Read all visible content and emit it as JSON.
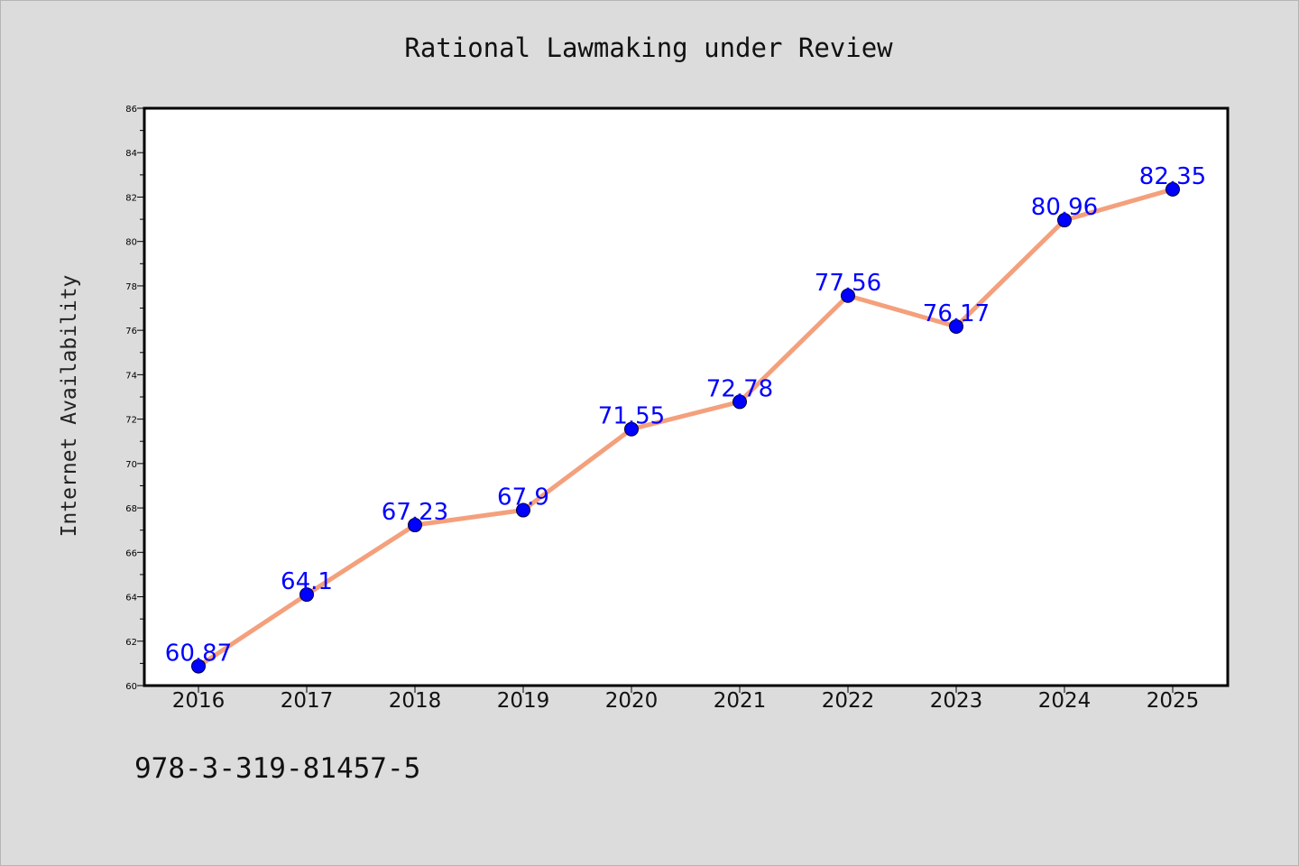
{
  "chart_data": {
    "type": "line",
    "title": "Rational Lawmaking under Review",
    "xlabel": "",
    "ylabel": "Internet Availability",
    "categories": [
      "2016",
      "2017",
      "2018",
      "2019",
      "2020",
      "2021",
      "2022",
      "2023",
      "2024",
      "2025"
    ],
    "series": [
      {
        "values": [
          60.87,
          64.1,
          67.23,
          67.9,
          71.55,
          72.78,
          77.56,
          76.17,
          80.96,
          82.35
        ],
        "labels": [
          "60.87",
          "64.1",
          "67.23",
          "67.9",
          "71.55",
          "72.78",
          "77.56",
          "76.17",
          "80.96",
          "82.35"
        ]
      }
    ],
    "ylim": [
      60,
      86
    ],
    "yticks": [
      "60",
      "62",
      "64",
      "66",
      "68",
      "70",
      "72",
      "74",
      "76",
      "78",
      "80",
      "82",
      "84",
      "86"
    ],
    "grid": false,
    "legend": "none",
    "colors": {
      "line": "#f4a07c",
      "marker": "#0000ff",
      "label": "#0000ff",
      "plot_bg": "#ffffff",
      "page_bg": "#dcdcdc"
    }
  },
  "footer": {
    "isbn": "978-3-319-81457-5"
  }
}
